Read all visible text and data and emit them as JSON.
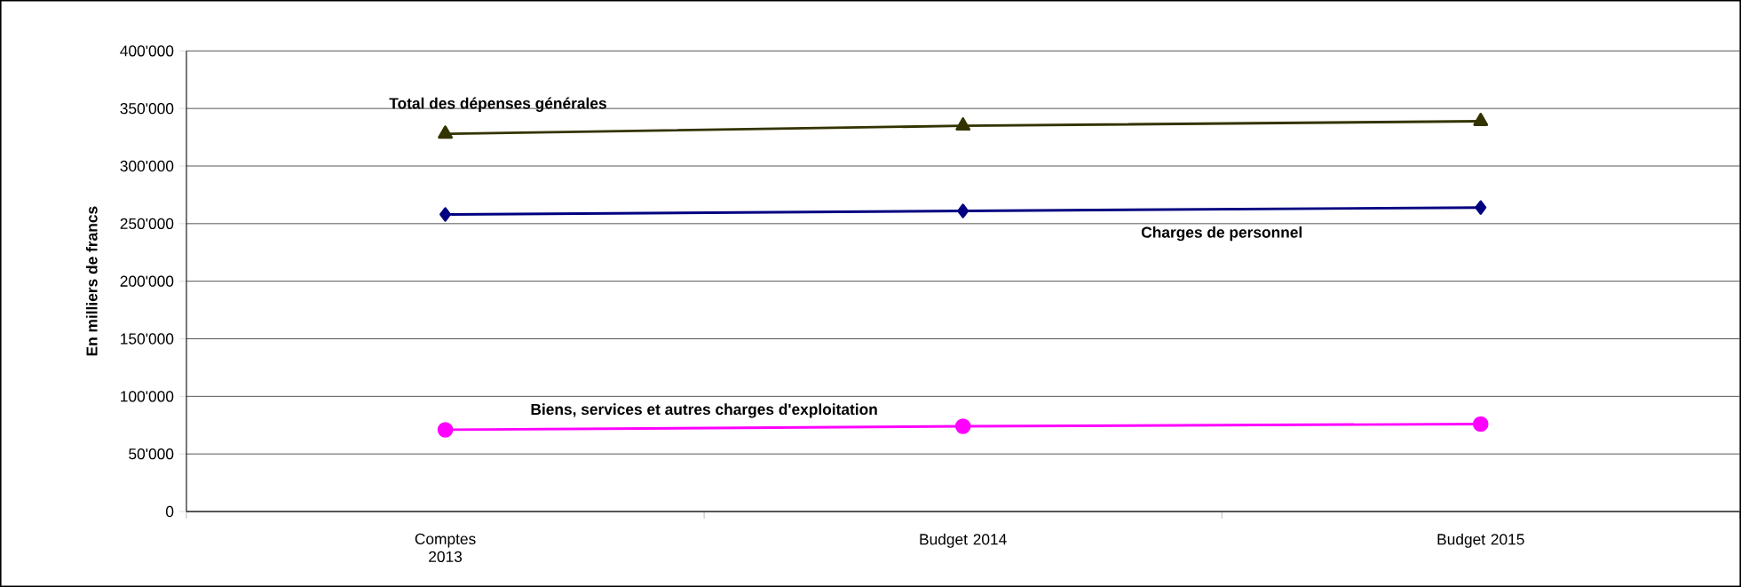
{
  "chart_data": {
    "type": "line",
    "ylabel": "En milliers de francs",
    "categories": [
      "Comptes 2013",
      "Budget 2014",
      "Budget 2015"
    ],
    "series": [
      {
        "name": "Total des dépenses générales",
        "color": "#333300",
        "marker": "triangle",
        "values": [
          328000,
          335000,
          339000
        ]
      },
      {
        "name": "Charges de personnel",
        "color": "#000080",
        "marker": "diamond",
        "values": [
          258000,
          261000,
          264000
        ]
      },
      {
        "name": "Biens, services et autres charges d'exploitation",
        "color": "#ff00ff",
        "marker": "circle",
        "values": [
          71000,
          74000,
          76000
        ]
      }
    ],
    "ylim": [
      0,
      400000
    ],
    "yticks": [
      {
        "value": 0,
        "label": "0"
      },
      {
        "value": 50000,
        "label": "50'000"
      },
      {
        "value": 100000,
        "label": "100'000"
      },
      {
        "value": 150000,
        "label": "150'000"
      },
      {
        "value": 200000,
        "label": "200'000"
      },
      {
        "value": 250000,
        "label": "250'000"
      },
      {
        "value": 300000,
        "label": "300'000"
      },
      {
        "value": 350000,
        "label": "350'000"
      },
      {
        "value": 400000,
        "label": "400'000"
      }
    ],
    "grid": "y",
    "line_style": "solid"
  }
}
